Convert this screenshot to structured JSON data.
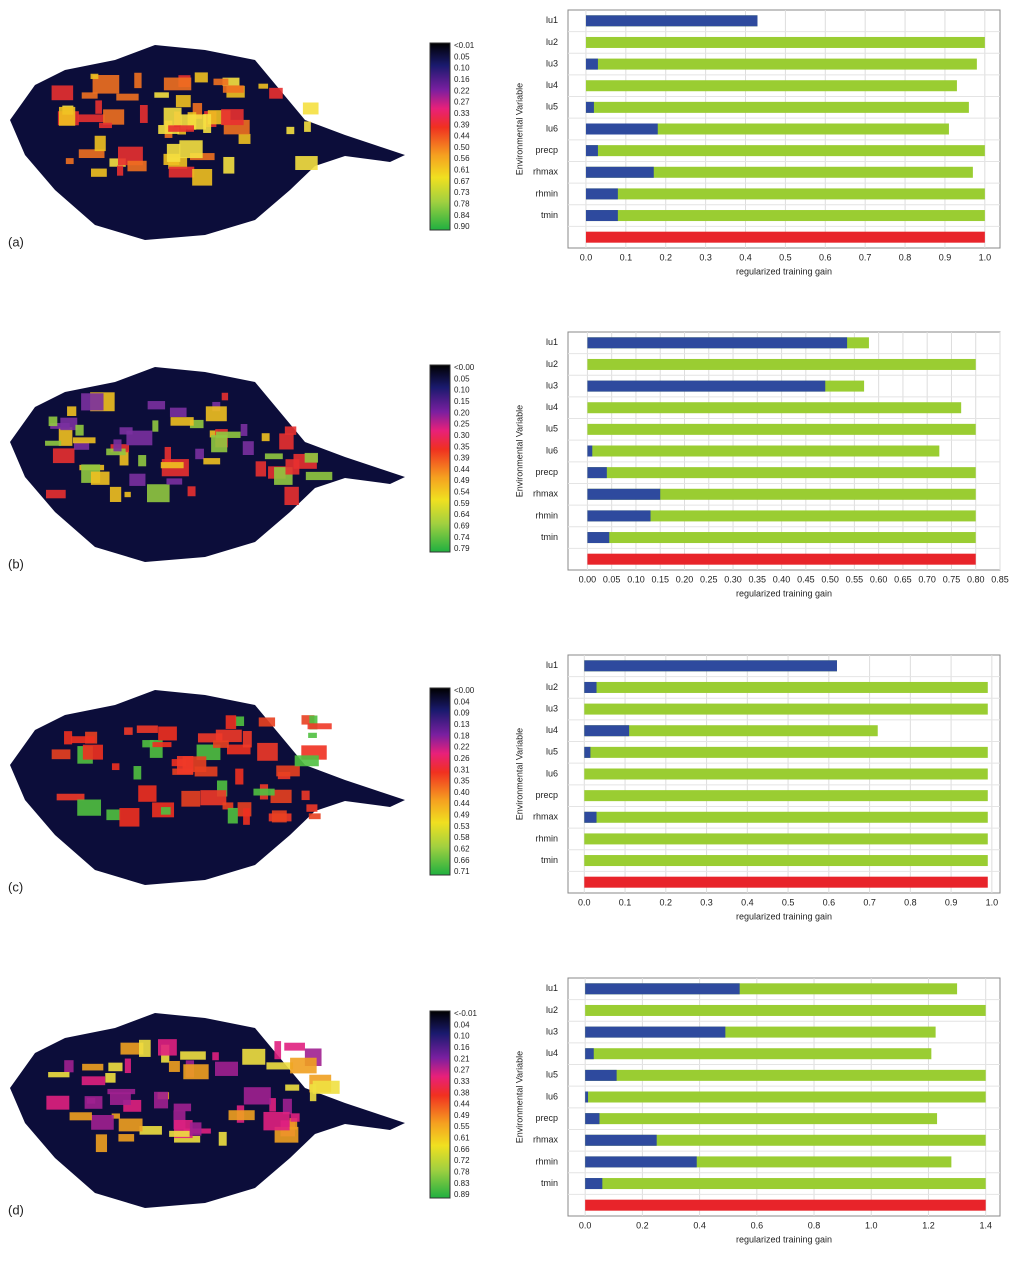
{
  "chart_data": [
    {
      "type": "bar",
      "panel_label": "(a)",
      "x_label": "regularized training gain",
      "y_label": "Environmental Variable",
      "categories": [
        "lu1",
        "lu2",
        "lu3",
        "lu4",
        "lu5",
        "lu6",
        "precp",
        "rhmax",
        "rhmin",
        "tmin",
        null
      ],
      "series": [
        {
          "color": "#9acd32",
          "values": [
            0.43,
            1.0,
            0.98,
            0.93,
            0.96,
            0.91,
            1.0,
            0.97,
            1.0,
            1.0,
            null
          ]
        },
        {
          "color": "#2e4a9e",
          "values": [
            0.43,
            0,
            0.03,
            0,
            0.02,
            0.18,
            0.03,
            0.17,
            0.08,
            0.08,
            null
          ]
        },
        {
          "color": "#e8242a",
          "values": [
            null,
            null,
            null,
            null,
            null,
            null,
            null,
            null,
            null,
            null,
            1.0
          ]
        }
      ],
      "xlim": [
        -0.045,
        1.038
      ],
      "xticks": [
        {
          "value": 0,
          "label": "0.0"
        },
        0.1,
        0.2,
        0.3,
        0.4,
        0.5,
        0.6,
        0.7,
        0.8,
        0.9,
        {
          "value": 1,
          "label": "1.0"
        }
      ],
      "grid": true,
      "colorbar_labels": [
        "<0.01",
        "0.05",
        "0.10",
        "0.16",
        "0.22",
        "0.27",
        "0.33",
        "0.39",
        "0.44",
        "0.50",
        "0.56",
        "0.61",
        "0.67",
        "0.73",
        "0.78",
        "0.84",
        "0.90"
      ]
    },
    {
      "type": "bar",
      "panel_label": "(b)",
      "x_label": "regularized training gain",
      "y_label": "Environmental Variable",
      "categories": [
        "lu1",
        "lu2",
        "lu3",
        "lu4",
        "lu5",
        "lu6",
        "precp",
        "rhmax",
        "rhmin",
        "tmin",
        null
      ],
      "series": [
        {
          "color": "#9acd32",
          "values": [
            0.58,
            0.8,
            0.57,
            0.77,
            0.8,
            0.725,
            0.8,
            0.8,
            0.8,
            0.8,
            null
          ]
        },
        {
          "color": "#2e4a9e",
          "values": [
            0.535,
            0,
            0.49,
            0,
            0,
            0.01,
            0.04,
            0.15,
            0.13,
            0.045,
            null
          ]
        },
        {
          "color": "#e8242a",
          "values": [
            null,
            null,
            null,
            null,
            null,
            null,
            null,
            null,
            null,
            null,
            0.8
          ]
        }
      ],
      "xlim": [
        -0.04,
        0.85
      ],
      "xticks": [
        {
          "value": 0,
          "label": "0.00"
        },
        0.05,
        {
          "value": 0.1,
          "label": "0.10"
        },
        0.15,
        {
          "value": 0.2,
          "label": "0.20"
        },
        0.25,
        {
          "value": 0.3,
          "label": "0.30"
        },
        0.35,
        {
          "value": 0.4,
          "label": "0.40"
        },
        0.45,
        {
          "value": 0.5,
          "label": "0.50"
        },
        0.55,
        {
          "value": 0.6,
          "label": "0.60"
        },
        0.65,
        {
          "value": 0.7,
          "label": "0.70"
        },
        0.75,
        {
          "value": 0.8,
          "label": "0.80"
        },
        0.85
      ],
      "grid": true,
      "colorbar_labels": [
        "<0.00",
        "0.05",
        "0.10",
        "0.15",
        "0.20",
        "0.25",
        "0.30",
        "0.35",
        "0.39",
        "0.44",
        "0.49",
        "0.54",
        "0.59",
        "0.64",
        "0.69",
        "0.74",
        "0.79"
      ]
    },
    {
      "type": "bar",
      "panel_label": "(c)",
      "x_label": "regularized training gain",
      "y_label": "Environmental Variable",
      "categories": [
        "lu1",
        "lu2",
        "lu3",
        "lu4",
        "lu5",
        "lu6",
        "precp",
        "rhmax",
        "rhmin",
        "tmin",
        null
      ],
      "series": [
        {
          "color": "#9acd32",
          "values": [
            0.62,
            0.99,
            0.99,
            0.72,
            0.99,
            0.99,
            0.99,
            0.99,
            0.99,
            0.99,
            null
          ]
        },
        {
          "color": "#2e4a9e",
          "values": [
            0.62,
            0.03,
            0,
            0.11,
            0.015,
            0,
            0,
            0.03,
            0,
            0,
            null
          ]
        },
        {
          "color": "#e8242a",
          "values": [
            null,
            null,
            null,
            null,
            null,
            null,
            null,
            null,
            null,
            null,
            0.99
          ]
        }
      ],
      "xlim": [
        -0.04,
        1.02
      ],
      "xticks": [
        {
          "value": 0,
          "label": "0.0"
        },
        0.1,
        0.2,
        0.3,
        0.4,
        0.5,
        0.6,
        0.7,
        0.8,
        0.9,
        {
          "value": 1,
          "label": "1.0"
        }
      ],
      "grid": true,
      "colorbar_labels": [
        "<0.00",
        "0.04",
        "0.09",
        "0.13",
        "0.18",
        "0.22",
        "0.26",
        "0.31",
        "0.35",
        "0.40",
        "0.44",
        "0.49",
        "0.53",
        "0.58",
        "0.62",
        "0.66",
        "0.71"
      ]
    },
    {
      "type": "bar",
      "panel_label": "(d)",
      "x_label": "regularized training gain",
      "y_label": "Environmental Variable",
      "categories": [
        "lu1",
        "lu2",
        "lu3",
        "lu4",
        "lu5",
        "lu6",
        "precp",
        "rhmax",
        "rhmin",
        "tmin",
        null
      ],
      "series": [
        {
          "color": "#9acd32",
          "values": [
            1.3,
            1.4,
            1.225,
            1.21,
            1.4,
            1.4,
            1.23,
            1.4,
            1.28,
            1.4,
            null
          ]
        },
        {
          "color": "#2e4a9e",
          "values": [
            0.54,
            0,
            0.49,
            0.03,
            0.11,
            0.01,
            0.05,
            0.25,
            0.39,
            0.06,
            null
          ]
        },
        {
          "color": "#e8242a",
          "values": [
            null,
            null,
            null,
            null,
            null,
            null,
            null,
            null,
            null,
            null,
            1.4
          ]
        }
      ],
      "xlim": [
        -0.06,
        1.45
      ],
      "xticks": [
        {
          "value": 0,
          "label": "0.0"
        },
        0.2,
        0.4,
        0.6,
        0.8,
        {
          "value": 1,
          "label": "1.0"
        },
        1.2,
        1.4
      ],
      "grid": true,
      "colorbar_labels": [
        "<-0.01",
        "0.04",
        "0.10",
        "0.16",
        "0.21",
        "0.27",
        "0.33",
        "0.38",
        "0.44",
        "0.49",
        "0.55",
        "0.61",
        "0.66",
        "0.72",
        "0.78",
        "0.83",
        "0.89"
      ]
    }
  ]
}
